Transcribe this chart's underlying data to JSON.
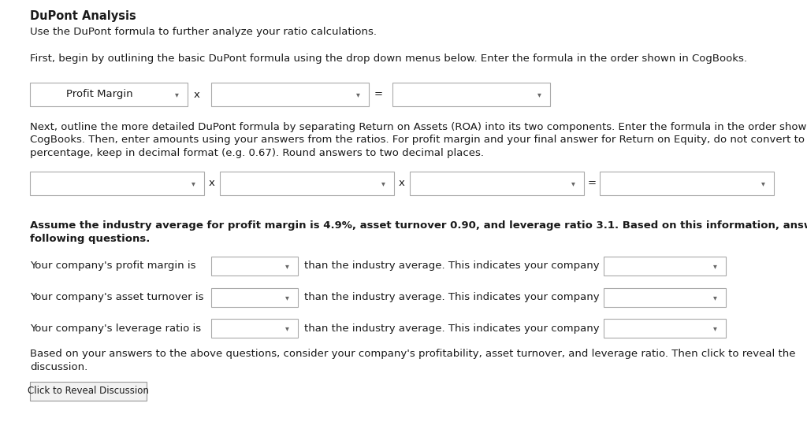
{
  "title": "DuPont Analysis",
  "subtitle": "Use the DuPont formula to further analyze your ratio calculations.",
  "para1": "First, begin by outlining the basic DuPont formula using the drop down menus below. Enter the formula in the order shown in CogBooks.",
  "row1_label": "Profit Margin",
  "para2_line1": "Next, outline the more detailed DuPont formula by separating Return on Assets (ROA) into its two components. Enter the formula in the order shown in",
  "para2_line2": "CogBooks. Then, enter amounts using your answers from the ratios. For profit margin and your final answer for Return on Equity, do not convert to a",
  "para2_line3": "percentage, keep in decimal format (e.g. 0.67). Round answers to two decimal places.",
  "bold_line1": "Assume the industry average for profit margin is 4.9%, asset turnover 0.90, and leverage ratio 3.1. Based on this information, answer the",
  "bold_line2": "following questions.",
  "q1": "Your company's profit margin is",
  "q1_mid": "than the industry average. This indicates your company",
  "q2": "Your company's asset turnover is",
  "q2_mid": "than the industry average. This indicates your company",
  "q3": "Your company's leverage ratio is",
  "q3_mid": "than the industry average. This indicates your company",
  "fp_line1": "Based on your answers to the above questions, consider your company's profitability, asset turnover, and leverage ratio. Then click to reveal the",
  "fp_line2": "discussion.",
  "button_label": "Click to Reveal Discussion",
  "bg_color": "#ffffff",
  "text_color": "#1a1a1a",
  "box_border_color": "#aaaaaa",
  "box_fill_color": "#ffffff",
  "arrow_color": "#666666"
}
